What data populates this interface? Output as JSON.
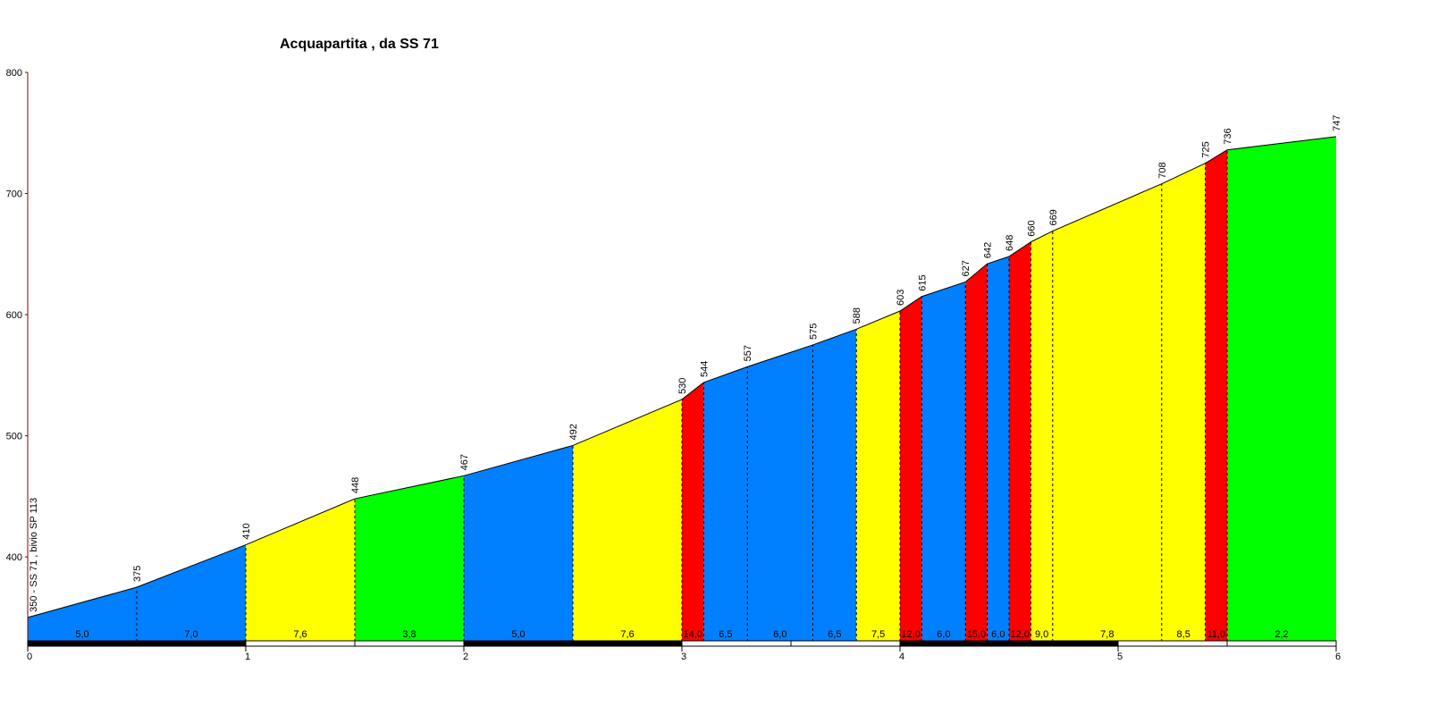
{
  "chart_data": {
    "type": "area",
    "title": "Acquapartita , da SS 71",
    "xlabel": "",
    "ylabel": "",
    "xlim": [
      0,
      6
    ],
    "ylim": [
      330,
      800
    ],
    "x_ticks": [
      "0",
      "1",
      "2",
      "3",
      "4",
      "5",
      "6"
    ],
    "y_ticks": [
      "400",
      "500",
      "600",
      "700",
      "800"
    ],
    "y_tick_values": [
      400,
      500,
      600,
      700,
      800
    ],
    "grid": false,
    "start_label": "350 - SS 71 , bivio SP 113",
    "colors": {
      "blue": "#0080ff",
      "yellow": "#ffff00",
      "green": "#00ff00",
      "red": "#ff0000",
      "axis": "#800000",
      "line": "#000000"
    },
    "points": [
      {
        "x": 0.0,
        "y": 350,
        "label": ""
      },
      {
        "x": 0.5,
        "y": 375,
        "label": "375"
      },
      {
        "x": 1.0,
        "y": 410,
        "label": "410"
      },
      {
        "x": 1.5,
        "y": 448,
        "label": "448"
      },
      {
        "x": 2.0,
        "y": 467,
        "label": "467"
      },
      {
        "x": 2.5,
        "y": 492,
        "label": "492"
      },
      {
        "x": 3.0,
        "y": 530,
        "label": "530"
      },
      {
        "x": 3.1,
        "y": 544,
        "label": "544"
      },
      {
        "x": 3.3,
        "y": 557,
        "label": "557"
      },
      {
        "x": 3.6,
        "y": 575,
        "label": "575"
      },
      {
        "x": 3.8,
        "y": 588,
        "label": "588"
      },
      {
        "x": 4.0,
        "y": 603,
        "label": "603"
      },
      {
        "x": 4.1,
        "y": 615,
        "label": "615"
      },
      {
        "x": 4.3,
        "y": 627,
        "label": "627"
      },
      {
        "x": 4.4,
        "y": 642,
        "label": "642"
      },
      {
        "x": 4.5,
        "y": 648,
        "label": "648"
      },
      {
        "x": 4.6,
        "y": 660,
        "label": "660"
      },
      {
        "x": 4.7,
        "y": 669,
        "label": "669"
      },
      {
        "x": 5.2,
        "y": 708,
        "label": "708"
      },
      {
        "x": 5.4,
        "y": 725,
        "label": "725"
      },
      {
        "x": 5.5,
        "y": 736,
        "label": "736"
      },
      {
        "x": 6.0,
        "y": 747,
        "label": "747"
      }
    ],
    "segments": [
      {
        "from": 0.0,
        "to": 1.0,
        "color": "blue",
        "label": ""
      },
      {
        "from": 1.0,
        "to": 1.5,
        "color": "yellow",
        "label": "7,6"
      },
      {
        "from": 1.5,
        "to": 2.0,
        "color": "green",
        "label": "3,8"
      },
      {
        "from": 2.0,
        "to": 2.5,
        "color": "blue",
        "label": "5,0"
      },
      {
        "from": 2.5,
        "to": 3.0,
        "color": "yellow",
        "label": "7,6"
      },
      {
        "from": 3.0,
        "to": 3.1,
        "color": "red",
        "label": "14,0"
      },
      {
        "from": 3.1,
        "to": 3.8,
        "color": "blue",
        "label": ""
      },
      {
        "from": 3.8,
        "to": 4.0,
        "color": "yellow",
        "label": "7,5"
      },
      {
        "from": 4.0,
        "to": 4.1,
        "color": "red",
        "label": "12,0"
      },
      {
        "from": 4.1,
        "to": 4.3,
        "color": "blue",
        "label": "6,0"
      },
      {
        "from": 4.3,
        "to": 4.4,
        "color": "red",
        "label": "15,0"
      },
      {
        "from": 4.4,
        "to": 4.5,
        "color": "blue",
        "label": "6,0"
      },
      {
        "from": 4.5,
        "to": 4.6,
        "color": "red",
        "label": "12,0"
      },
      {
        "from": 4.6,
        "to": 5.4,
        "color": "yellow",
        "label": ""
      },
      {
        "from": 5.4,
        "to": 5.5,
        "color": "red",
        "label": "11,0"
      },
      {
        "from": 5.5,
        "to": 6.0,
        "color": "green",
        "label": "2,2"
      }
    ],
    "sub_labels": [
      {
        "x": 0.25,
        "label": "5,0"
      },
      {
        "x": 0.75,
        "label": "7,0"
      },
      {
        "x": 3.2,
        "label": "6,5"
      },
      {
        "x": 3.45,
        "label": "6,0"
      },
      {
        "x": 3.7,
        "label": "6,5"
      },
      {
        "x": 4.65,
        "label": "9,0"
      },
      {
        "x": 4.95,
        "label": "7,8"
      },
      {
        "x": 5.3,
        "label": "8,5"
      }
    ],
    "dashed_at": [
      0.5,
      1.0,
      1.5,
      2.0,
      2.5,
      3.0,
      3.1,
      3.3,
      3.6,
      3.8,
      4.0,
      4.1,
      4.3,
      4.4,
      4.5,
      4.6,
      4.7,
      5.2,
      5.4,
      5.5
    ]
  }
}
